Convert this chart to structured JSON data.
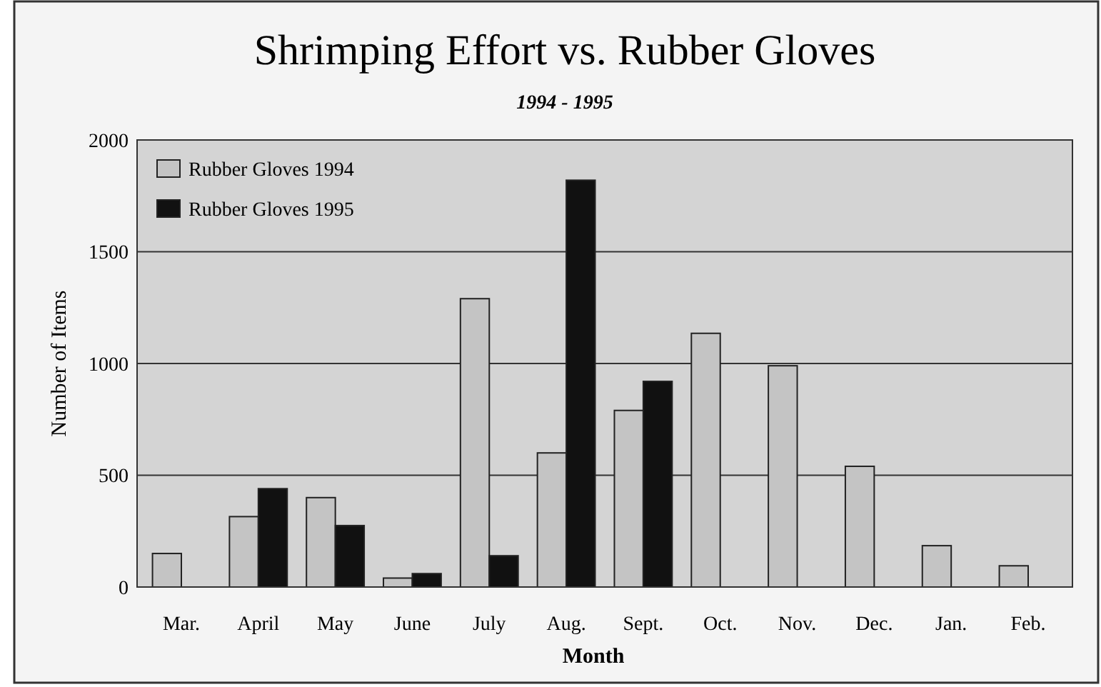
{
  "chart_data": {
    "type": "bar",
    "title": "Shrimping Effort vs. Rubber Gloves",
    "subtitle": "1994 - 1995",
    "xlabel": "Month",
    "ylabel": "Number of Items",
    "categories": [
      "Mar.",
      "April",
      "May",
      "June",
      "July",
      "Aug.",
      "Sept.",
      "Oct.",
      "Nov.",
      "Dec.",
      "Jan.",
      "Feb."
    ],
    "series": [
      {
        "name": "Rubber Gloves 1994",
        "color": "#c4c4c4",
        "values": [
          150,
          315,
          400,
          40,
          1290,
          600,
          790,
          1135,
          990,
          540,
          185,
          95
        ]
      },
      {
        "name": "Rubber Gloves 1995",
        "color": "#111111",
        "values": [
          null,
          440,
          275,
          60,
          140,
          1820,
          920,
          null,
          null,
          null,
          null,
          null
        ]
      }
    ],
    "ylim": [
      0,
      2000
    ],
    "yticks": [
      0,
      500,
      1000,
      1500,
      2000
    ],
    "grid": "y",
    "legend": "top left"
  }
}
